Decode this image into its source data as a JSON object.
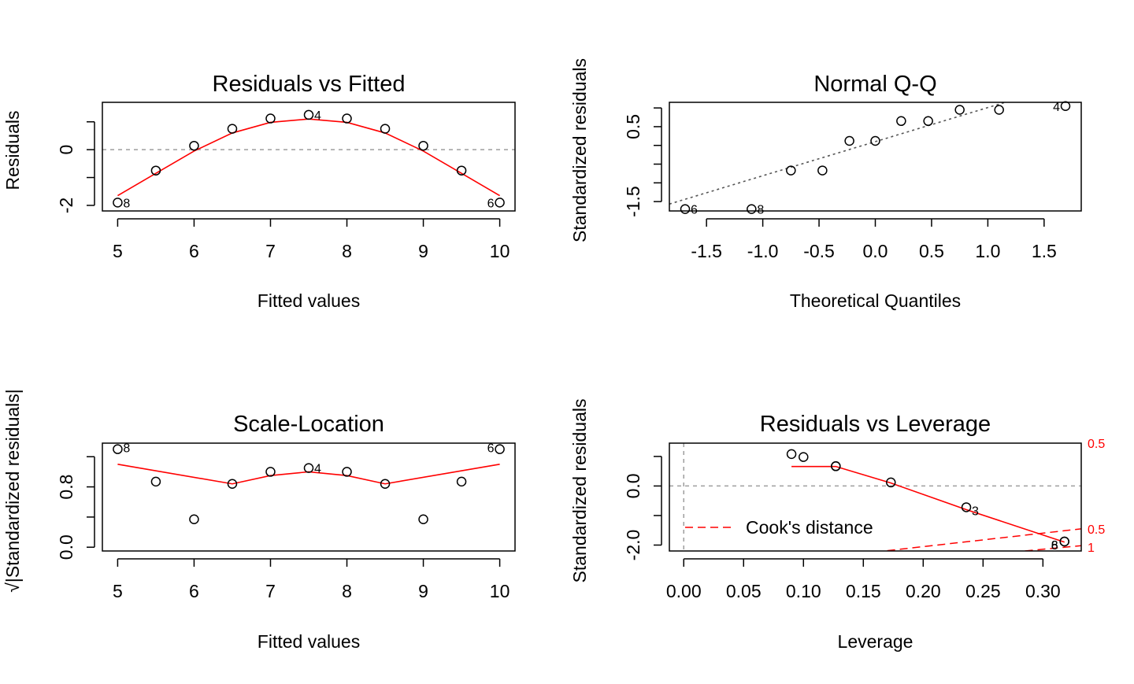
{
  "colors": {
    "smooth": "#ff0000",
    "ref_line": "#9e9e9e",
    "qq_line": "#555555",
    "cook": "#ff0000",
    "points": "#000000"
  },
  "chart_data": [
    {
      "type": "scatter",
      "title": "Residuals vs Fitted",
      "xlabel": "Fitted values",
      "ylabel": "Residuals",
      "xlim": [
        4.8,
        10.2
      ],
      "ylim": [
        -2.2,
        1.7
      ],
      "xticks": [
        5,
        6,
        7,
        8,
        9,
        10
      ],
      "xtick_labels": [
        "5",
        "6",
        "7",
        "8",
        "9",
        "10"
      ],
      "yticks": [
        -2,
        -1,
        0,
        1
      ],
      "ytick_labels": [
        "-2",
        "",
        "0",
        ""
      ],
      "reference_line": 0,
      "points": [
        {
          "x": 5,
          "y": -1.9,
          "label": "8"
        },
        {
          "x": 5.5,
          "y": -0.75
        },
        {
          "x": 6,
          "y": 0.14
        },
        {
          "x": 6.5,
          "y": 0.75
        },
        {
          "x": 7,
          "y": 1.12
        },
        {
          "x": 7.5,
          "y": 1.25,
          "label": "4"
        },
        {
          "x": 8,
          "y": 1.12
        },
        {
          "x": 8.5,
          "y": 0.75
        },
        {
          "x": 9,
          "y": 0.14
        },
        {
          "x": 9.5,
          "y": -0.75
        },
        {
          "x": 10,
          "y": -1.9,
          "label": "6"
        }
      ],
      "smooth": [
        [
          5,
          -1.65
        ],
        [
          5.5,
          -0.85
        ],
        [
          6,
          -0.05
        ],
        [
          6.5,
          0.6
        ],
        [
          7,
          0.98
        ],
        [
          7.5,
          1.1
        ],
        [
          8,
          0.98
        ],
        [
          8.5,
          0.6
        ],
        [
          9,
          -0.05
        ],
        [
          9.5,
          -0.85
        ],
        [
          10,
          -1.65
        ]
      ]
    },
    {
      "type": "scatter",
      "title": "Normal Q-Q",
      "xlabel": "Theoretical Quantiles",
      "ylabel": "Standardized residuals",
      "xlim": [
        -1.83,
        1.83
      ],
      "ylim": [
        -1.75,
        1.15
      ],
      "xticks": [
        -1.5,
        -1.0,
        -0.5,
        0.0,
        0.5,
        1.0,
        1.5
      ],
      "xtick_labels": [
        "-1.5",
        "-1.0",
        "-0.5",
        "0.0",
        "0.5",
        "1.0",
        "1.5"
      ],
      "yticks": [
        -1.5,
        -1.0,
        -0.5,
        0.0,
        0.5,
        1.0
      ],
      "ytick_labels": [
        "-1.5",
        "",
        "",
        "",
        "0.5",
        ""
      ],
      "qq_line": {
        "slope": 0.91,
        "intercept": 0.1
      },
      "points": [
        {
          "x": -1.69,
          "y": -1.7,
          "label": "6"
        },
        {
          "x": -1.1,
          "y": -1.7,
          "label": "8"
        },
        {
          "x": -0.75,
          "y": -0.67
        },
        {
          "x": -0.47,
          "y": -0.67
        },
        {
          "x": -0.23,
          "y": 0.12
        },
        {
          "x": 0.0,
          "y": 0.12
        },
        {
          "x": 0.23,
          "y": 0.65
        },
        {
          "x": 0.47,
          "y": 0.65
        },
        {
          "x": 0.75,
          "y": 0.95
        },
        {
          "x": 1.1,
          "y": 0.95
        },
        {
          "x": 1.69,
          "y": 1.05,
          "label": "4"
        }
      ]
    },
    {
      "type": "scatter",
      "title": "Scale-Location",
      "xlabel": "Fitted values",
      "ylabel": "√|Standardized residuals|",
      "xlim": [
        4.8,
        10.2
      ],
      "ylim": [
        -0.05,
        1.38
      ],
      "xticks": [
        5,
        6,
        7,
        8,
        9,
        10
      ],
      "xtick_labels": [
        "5",
        "6",
        "7",
        "8",
        "9",
        "10"
      ],
      "yticks": [
        0.0,
        0.4,
        0.8,
        1.2
      ],
      "ytick_labels": [
        "0.0",
        "",
        "0.8",
        ""
      ],
      "points": [
        {
          "x": 5,
          "y": 1.3,
          "label": "8"
        },
        {
          "x": 5.5,
          "y": 0.87
        },
        {
          "x": 6,
          "y": 0.37
        },
        {
          "x": 6.5,
          "y": 0.84
        },
        {
          "x": 7,
          "y": 1.0
        },
        {
          "x": 7.5,
          "y": 1.05,
          "label": "4"
        },
        {
          "x": 8,
          "y": 1.0
        },
        {
          "x": 8.5,
          "y": 0.84
        },
        {
          "x": 9,
          "y": 0.37
        },
        {
          "x": 9.5,
          "y": 0.87
        },
        {
          "x": 10,
          "y": 1.3,
          "label": "6"
        }
      ],
      "smooth": [
        [
          5,
          1.1
        ],
        [
          6.5,
          0.84
        ],
        [
          7,
          0.95
        ],
        [
          7.5,
          1.0
        ],
        [
          8,
          0.95
        ],
        [
          8.5,
          0.84
        ],
        [
          10,
          1.1
        ]
      ]
    },
    {
      "type": "scatter",
      "title": "Residuals vs Leverage",
      "xlabel": "Leverage",
      "ylabel": "Standardized residuals",
      "xlim": [
        -0.012,
        0.332
      ],
      "ylim": [
        -2.2,
        1.45
      ],
      "xticks": [
        0.0,
        0.05,
        0.1,
        0.15,
        0.2,
        0.25,
        0.3
      ],
      "xtick_labels": [
        "0.00",
        "0.05",
        "0.10",
        "0.15",
        "0.20",
        "0.25",
        "0.30"
      ],
      "yticks": [
        -2.0,
        -1.0,
        0.0,
        1.0
      ],
      "ytick_labels": [
        "-2.0",
        "",
        "0.0",
        ""
      ],
      "reference_line": 0,
      "points": [
        {
          "x": 0.09,
          "y": 1.08
        },
        {
          "x": 0.1,
          "y": 0.98
        },
        {
          "x": 0.127,
          "y": 0.67
        },
        {
          "x": 0.127,
          "y": 0.67
        },
        {
          "x": 0.173,
          "y": 0.12
        },
        {
          "x": 0.236,
          "y": -0.72,
          "label": "3"
        },
        {
          "x": 0.318,
          "y": -1.88,
          "label": "6"
        },
        {
          "x": 0.318,
          "y": -1.88,
          "label": "8"
        }
      ],
      "smooth": [
        [
          0.09,
          0.66
        ],
        [
          0.127,
          0.66
        ],
        [
          0.173,
          0.1
        ],
        [
          0.236,
          -0.8
        ],
        [
          0.318,
          -1.9
        ]
      ],
      "legend": {
        "label": "Cook's distance",
        "position": "bottom-left"
      },
      "cook_levels": [
        {
          "level": 0.5,
          "label": "0.5",
          "upper_y": 1.45,
          "lower": [
            [
              0.17,
              -2.19
            ],
            [
              0.332,
              -1.45
            ]
          ],
          "lower_label_y": -1.45
        },
        {
          "level": 1,
          "label": "1",
          "lower": [
            [
              0.285,
              -2.2
            ],
            [
              0.332,
              -2.02
            ]
          ],
          "lower_label_y": -2.02
        }
      ]
    }
  ]
}
